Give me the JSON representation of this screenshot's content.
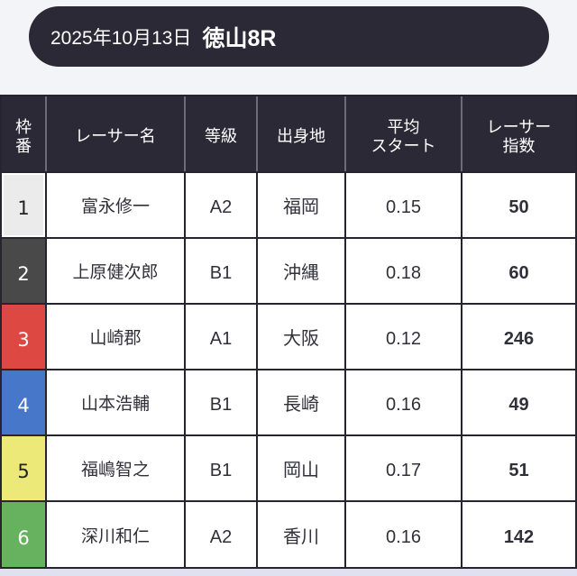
{
  "page": {
    "background_top": "#f3f4f8",
    "background_bottom": "#dfe1f0"
  },
  "race_header": {
    "date": "2025年10月13日",
    "race": "徳山8R",
    "background": "#2c2936",
    "text_color": "#ffffff"
  },
  "table": {
    "header_background": "#2c2936",
    "grid_color": "#272430",
    "header_divider_color": "#6e6b78",
    "columns": [
      {
        "key": "waku",
        "label": "枠番",
        "lines": [
          "枠",
          "番"
        ]
      },
      {
        "key": "name",
        "label": "レーサー名",
        "lines": [
          "レーサー名"
        ]
      },
      {
        "key": "grade",
        "label": "等級",
        "lines": [
          "等級"
        ]
      },
      {
        "key": "origin",
        "label": "出身地",
        "lines": [
          "出身地"
        ]
      },
      {
        "key": "avg_start",
        "label": "平均スタート",
        "lines": [
          "平均",
          "スタート"
        ]
      },
      {
        "key": "index",
        "label": "レーサー指数",
        "lines": [
          "レーサー",
          "指数"
        ]
      }
    ],
    "rows": [
      {
        "waku": "1",
        "name": "富永修一",
        "grade": "A2",
        "origin": "福岡",
        "avg_start": "0.15",
        "index": "50"
      },
      {
        "waku": "2",
        "name": "上原健次郎",
        "grade": "B1",
        "origin": "沖縄",
        "avg_start": "0.18",
        "index": "60"
      },
      {
        "waku": "3",
        "name": "山崎郡",
        "grade": "A1",
        "origin": "大阪",
        "avg_start": "0.12",
        "index": "246"
      },
      {
        "waku": "4",
        "name": "山本浩輔",
        "grade": "B1",
        "origin": "長崎",
        "avg_start": "0.16",
        "index": "49"
      },
      {
        "waku": "5",
        "name": "福嶋智之",
        "grade": "B1",
        "origin": "岡山",
        "avg_start": "0.17",
        "index": "51"
      },
      {
        "waku": "6",
        "name": "深川和仁",
        "grade": "A2",
        "origin": "香川",
        "avg_start": "0.16",
        "index": "142"
      }
    ],
    "waku_colors": {
      "1": {
        "bg": "#ebebeb",
        "text": "#222222",
        "ring": "#ffffff"
      },
      "2": {
        "bg": "#494949",
        "text": "#ffffff"
      },
      "3": {
        "bg": "#dd4942",
        "text": "#ffffff"
      },
      "4": {
        "bg": "#4677c9",
        "text": "#ffffff"
      },
      "5": {
        "bg": "#ece978",
        "text": "#222222"
      },
      "6": {
        "bg": "#67b25e",
        "text": "#ffffff"
      }
    }
  }
}
